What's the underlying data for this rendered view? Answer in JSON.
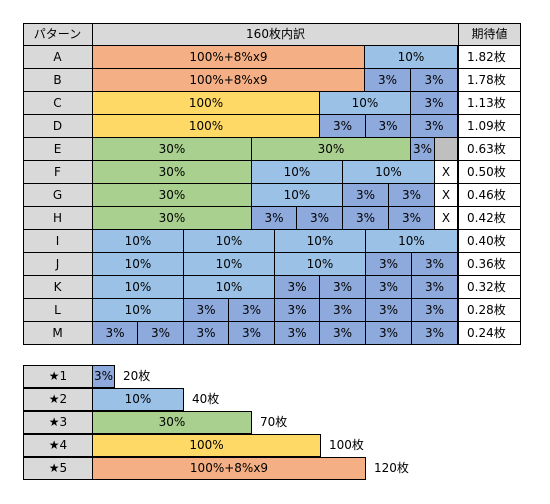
{
  "header": {
    "pattern_label": "パターン",
    "breakdown_label": "160枚内訳",
    "expected_label": "期待値"
  },
  "rows": [
    {
      "label": "A",
      "value": "1.82枚",
      "segs": [
        {
          "t": "100%+8%x9",
          "c": "c-orange",
          "w": 272
        },
        {
          "t": "10%",
          "c": "c-blue10",
          "w": 93
        }
      ]
    },
    {
      "label": "B",
      "value": "1.78枚",
      "segs": [
        {
          "t": "100%+8%x9",
          "c": "c-orange",
          "w": 272
        },
        {
          "t": "3%",
          "c": "c-blue3",
          "w": 46
        },
        {
          "t": "3%",
          "c": "c-blue3",
          "w": 47
        }
      ]
    },
    {
      "label": "C",
      "value": "1.13枚",
      "segs": [
        {
          "t": "100%",
          "c": "c-yellow",
          "w": 227
        },
        {
          "t": "10%",
          "c": "c-blue10",
          "w": 91
        },
        {
          "t": "3%",
          "c": "c-blue3",
          "w": 47
        }
      ]
    },
    {
      "label": "D",
      "value": "1.09枚",
      "segs": [
        {
          "t": "100%",
          "c": "c-yellow",
          "w": 227
        },
        {
          "t": "3%",
          "c": "c-blue3",
          "w": 46
        },
        {
          "t": "3%",
          "c": "c-blue3",
          "w": 45
        },
        {
          "t": "3%",
          "c": "c-blue3",
          "w": 47
        }
      ]
    },
    {
      "label": "E",
      "value": "0.63枚",
      "segs": [
        {
          "t": "30%",
          "c": "c-green",
          "w": 159
        },
        {
          "t": "30%",
          "c": "c-green",
          "w": 159
        },
        {
          "t": "3%",
          "c": "c-blue3",
          "w": 24
        },
        {
          "t": "",
          "c": "c-gray",
          "w": 23
        }
      ]
    },
    {
      "label": "F",
      "value": "0.50枚",
      "segs": [
        {
          "t": "30%",
          "c": "c-green",
          "w": 159
        },
        {
          "t": "10%",
          "c": "c-blue10",
          "w": 91
        },
        {
          "t": "10%",
          "c": "c-blue10",
          "w": 92
        },
        {
          "t": "X",
          "c": "c-x",
          "w": 23
        }
      ]
    },
    {
      "label": "G",
      "value": "0.46枚",
      "segs": [
        {
          "t": "30%",
          "c": "c-green",
          "w": 159
        },
        {
          "t": "10%",
          "c": "c-blue10",
          "w": 91
        },
        {
          "t": "3%",
          "c": "c-blue3",
          "w": 46
        },
        {
          "t": "3%",
          "c": "c-blue3",
          "w": 46
        },
        {
          "t": "X",
          "c": "c-x",
          "w": 23
        }
      ]
    },
    {
      "label": "H",
      "value": "0.42枚",
      "segs": [
        {
          "t": "30%",
          "c": "c-green",
          "w": 159
        },
        {
          "t": "3%",
          "c": "c-blue3",
          "w": 45
        },
        {
          "t": "3%",
          "c": "c-blue3",
          "w": 46
        },
        {
          "t": "3%",
          "c": "c-blue3",
          "w": 46
        },
        {
          "t": "3%",
          "c": "c-blue3",
          "w": 46
        },
        {
          "t": "X",
          "c": "c-x",
          "w": 23
        }
      ]
    },
    {
      "label": "I",
      "value": "0.40枚",
      "segs": [
        {
          "t": "10%",
          "c": "c-blue10",
          "w": 91
        },
        {
          "t": "10%",
          "c": "c-blue10",
          "w": 91
        },
        {
          "t": "10%",
          "c": "c-blue10",
          "w": 91
        },
        {
          "t": "10%",
          "c": "c-blue10",
          "w": 92
        }
      ]
    },
    {
      "label": "J",
      "value": "0.36枚",
      "segs": [
        {
          "t": "10%",
          "c": "c-blue10",
          "w": 91
        },
        {
          "t": "10%",
          "c": "c-blue10",
          "w": 91
        },
        {
          "t": "10%",
          "c": "c-blue10",
          "w": 91
        },
        {
          "t": "3%",
          "c": "c-blue3",
          "w": 46
        },
        {
          "t": "3%",
          "c": "c-blue3",
          "w": 46
        }
      ]
    },
    {
      "label": "K",
      "value": "0.32枚",
      "segs": [
        {
          "t": "10%",
          "c": "c-blue10",
          "w": 91
        },
        {
          "t": "10%",
          "c": "c-blue10",
          "w": 91
        },
        {
          "t": "3%",
          "c": "c-blue3",
          "w": 45
        },
        {
          "t": "3%",
          "c": "c-blue3",
          "w": 46
        },
        {
          "t": "3%",
          "c": "c-blue3",
          "w": 46
        },
        {
          "t": "3%",
          "c": "c-blue3",
          "w": 46
        }
      ]
    },
    {
      "label": "L",
      "value": "0.28枚",
      "segs": [
        {
          "t": "10%",
          "c": "c-blue10",
          "w": 91
        },
        {
          "t": "3%",
          "c": "c-blue3",
          "w": 45
        },
        {
          "t": "3%",
          "c": "c-blue3",
          "w": 46
        },
        {
          "t": "3%",
          "c": "c-blue3",
          "w": 45
        },
        {
          "t": "3%",
          "c": "c-blue3",
          "w": 46
        },
        {
          "t": "3%",
          "c": "c-blue3",
          "w": 46
        },
        {
          "t": "3%",
          "c": "c-blue3",
          "w": 46
        }
      ]
    },
    {
      "label": "M",
      "value": "0.24枚",
      "segs": [
        {
          "t": "3%",
          "c": "c-blue3",
          "w": 45
        },
        {
          "t": "3%",
          "c": "c-blue3",
          "w": 46
        },
        {
          "t": "3%",
          "c": "c-blue3",
          "w": 45
        },
        {
          "t": "3%",
          "c": "c-blue3",
          "w": 46
        },
        {
          "t": "3%",
          "c": "c-blue3",
          "w": 45
        },
        {
          "t": "3%",
          "c": "c-blue3",
          "w": 46
        },
        {
          "t": "3%",
          "c": "c-blue3",
          "w": 46
        },
        {
          "t": "3%",
          "c": "c-blue3",
          "w": 46
        }
      ]
    }
  ],
  "legend": [
    {
      "star": "★1",
      "bar": "3%",
      "c": "c-blue3",
      "w": 23,
      "count": "20枚"
    },
    {
      "star": "★2",
      "bar": "10%",
      "c": "c-blue10",
      "w": 92,
      "count": "40枚"
    },
    {
      "star": "★3",
      "bar": "30%",
      "c": "c-green",
      "w": 160,
      "count": "70枚"
    },
    {
      "star": "★4",
      "bar": "100%",
      "c": "c-yellow",
      "w": 229,
      "count": "100枚"
    },
    {
      "star": "★5",
      "bar": "100%+8%x9",
      "c": "c-orange",
      "w": 274,
      "count": "120枚"
    }
  ]
}
